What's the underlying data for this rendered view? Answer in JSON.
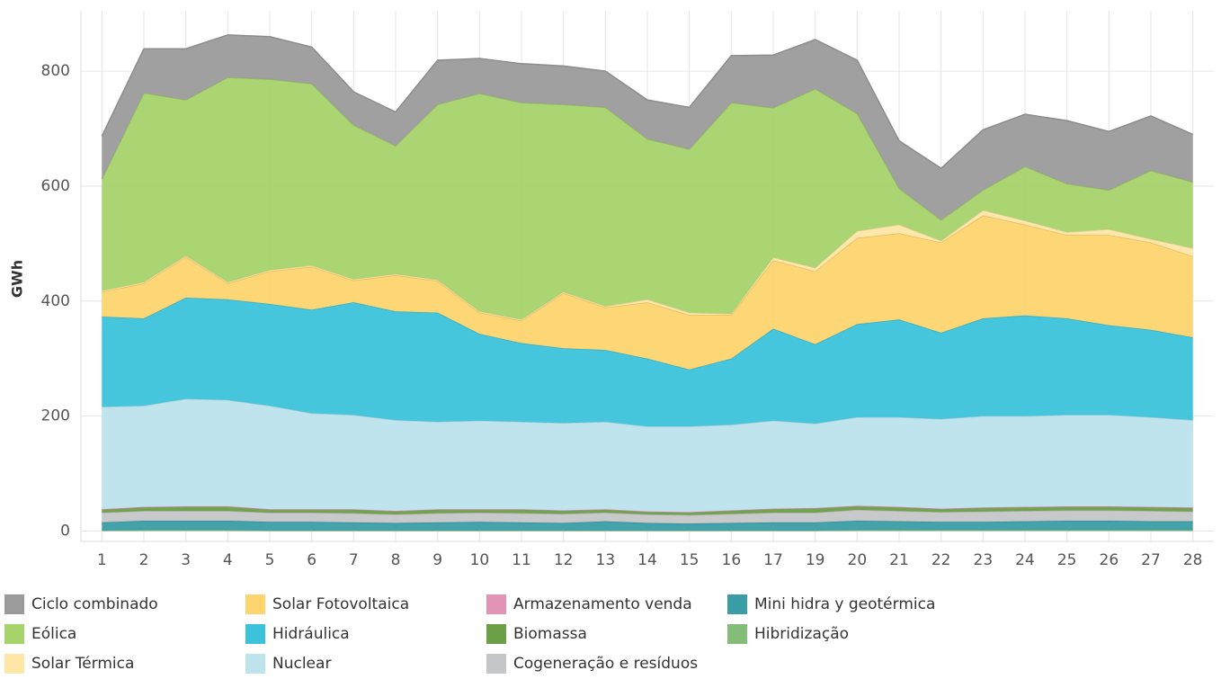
{
  "chart_data": {
    "type": "stacked_area",
    "y_label": "GWh",
    "categories": [
      "1",
      "2",
      "3",
      "4",
      "5",
      "6",
      "7",
      "8",
      "9",
      "10",
      "11",
      "12",
      "13",
      "14",
      "15",
      "16",
      "17",
      "19",
      "20",
      "21",
      "22",
      "23",
      "24",
      "25",
      "26",
      "27",
      "28"
    ],
    "ylim": [
      -18,
      905
    ],
    "yticks": [
      0,
      200,
      400,
      600,
      800
    ],
    "grid": true,
    "legend": "bottom",
    "series": [
      {
        "name": "Ciclo combinado",
        "color": "#9b9b9b",
        "values": [
          75,
          77,
          89,
          74,
          74,
          64,
          58,
          59,
          77,
          61,
          68,
          67,
          63,
          68,
          73,
          82,
          92,
          86,
          93,
          83,
          90,
          105,
          91,
          110,
          102,
          95,
          83
        ]
      },
      {
        "name": "Eólica",
        "color": "#a6d36a",
        "values": [
          194,
          329,
          271,
          356,
          332,
          316,
          268,
          223,
          305,
          379,
          377,
          326,
          346,
          279,
          284,
          367,
          260,
          311,
          204,
          63,
          36,
          35,
          94,
          84,
          68,
          119,
          115
        ]
      },
      {
        "name": "Solar Térmica",
        "color": "#fde6a6",
        "values": [
          2,
          2,
          2,
          2,
          2,
          2,
          2,
          2,
          2,
          2,
          2,
          2,
          2,
          5,
          4,
          2,
          5,
          6,
          12,
          15,
          3,
          9,
          7,
          5,
          10,
          6,
          14
        ]
      },
      {
        "name": "Solar Fotovoltaica",
        "color": "#fdd46e",
        "values": [
          43,
          61,
          71,
          28,
          57,
          75,
          38,
          63,
          55,
          37,
          39,
          96,
          74,
          98,
          95,
          76,
          119,
          127,
          150,
          150,
          157,
          179,
          158,
          145,
          157,
          152,
          141
        ]
      },
      {
        "name": "Hidráulica",
        "color": "#3cc3db",
        "values": [
          157,
          152,
          176,
          175,
          177,
          180,
          196,
          189,
          190,
          151,
          137,
          130,
          125,
          118,
          99,
          115,
          160,
          138,
          162,
          170,
          150,
          170,
          175,
          168,
          156,
          152,
          144
        ]
      },
      {
        "name": "Nuclear",
        "color": "#bde3ec",
        "values": [
          178,
          176,
          187,
          185,
          180,
          167,
          164,
          158,
          152,
          154,
          152,
          152,
          152,
          148,
          149,
          149,
          153,
          147,
          154,
          156,
          156,
          159,
          158,
          159,
          159,
          156,
          152
        ]
      },
      {
        "name": "Armazenamento venda",
        "color": "#e194b6",
        "values": [
          0,
          0,
          0,
          0,
          0,
          0,
          0,
          0,
          0,
          0,
          0,
          0,
          0,
          0,
          0,
          0,
          0,
          0,
          0,
          0,
          0,
          0,
          0,
          0,
          0,
          0,
          0
        ]
      },
      {
        "name": "Biomassa",
        "color": "#6b9e45",
        "values": [
          6,
          7,
          8,
          8,
          6,
          6,
          7,
          6,
          7,
          6,
          7,
          6,
          6,
          5,
          5,
          6,
          7,
          8,
          7,
          7,
          6,
          7,
          7,
          7,
          7,
          7,
          7
        ]
      },
      {
        "name": "Cogeneração e resíduos",
        "color": "#c5c6c7",
        "values": [
          17,
          17,
          17,
          17,
          16,
          16,
          16,
          15,
          16,
          16,
          16,
          16,
          15,
          15,
          15,
          16,
          17,
          17,
          19,
          18,
          17,
          18,
          18,
          18,
          18,
          18,
          17
        ]
      },
      {
        "name": "Mini hidra y geotérmica",
        "color": "#3a9da6",
        "values": [
          14,
          16,
          16,
          16,
          15,
          15,
          14,
          13,
          14,
          15,
          14,
          13,
          16,
          13,
          12,
          13,
          14,
          14,
          16,
          15,
          14,
          14,
          15,
          16,
          16,
          15,
          15
        ]
      },
      {
        "name": "Hibridização",
        "color": "#83bd78",
        "values": [
          1,
          2,
          2,
          2,
          1,
          1,
          1,
          1,
          1,
          1,
          1,
          1,
          1,
          1,
          1,
          1,
          1,
          1,
          2,
          2,
          2,
          2,
          2,
          2,
          2,
          2,
          2
        ]
      }
    ]
  }
}
